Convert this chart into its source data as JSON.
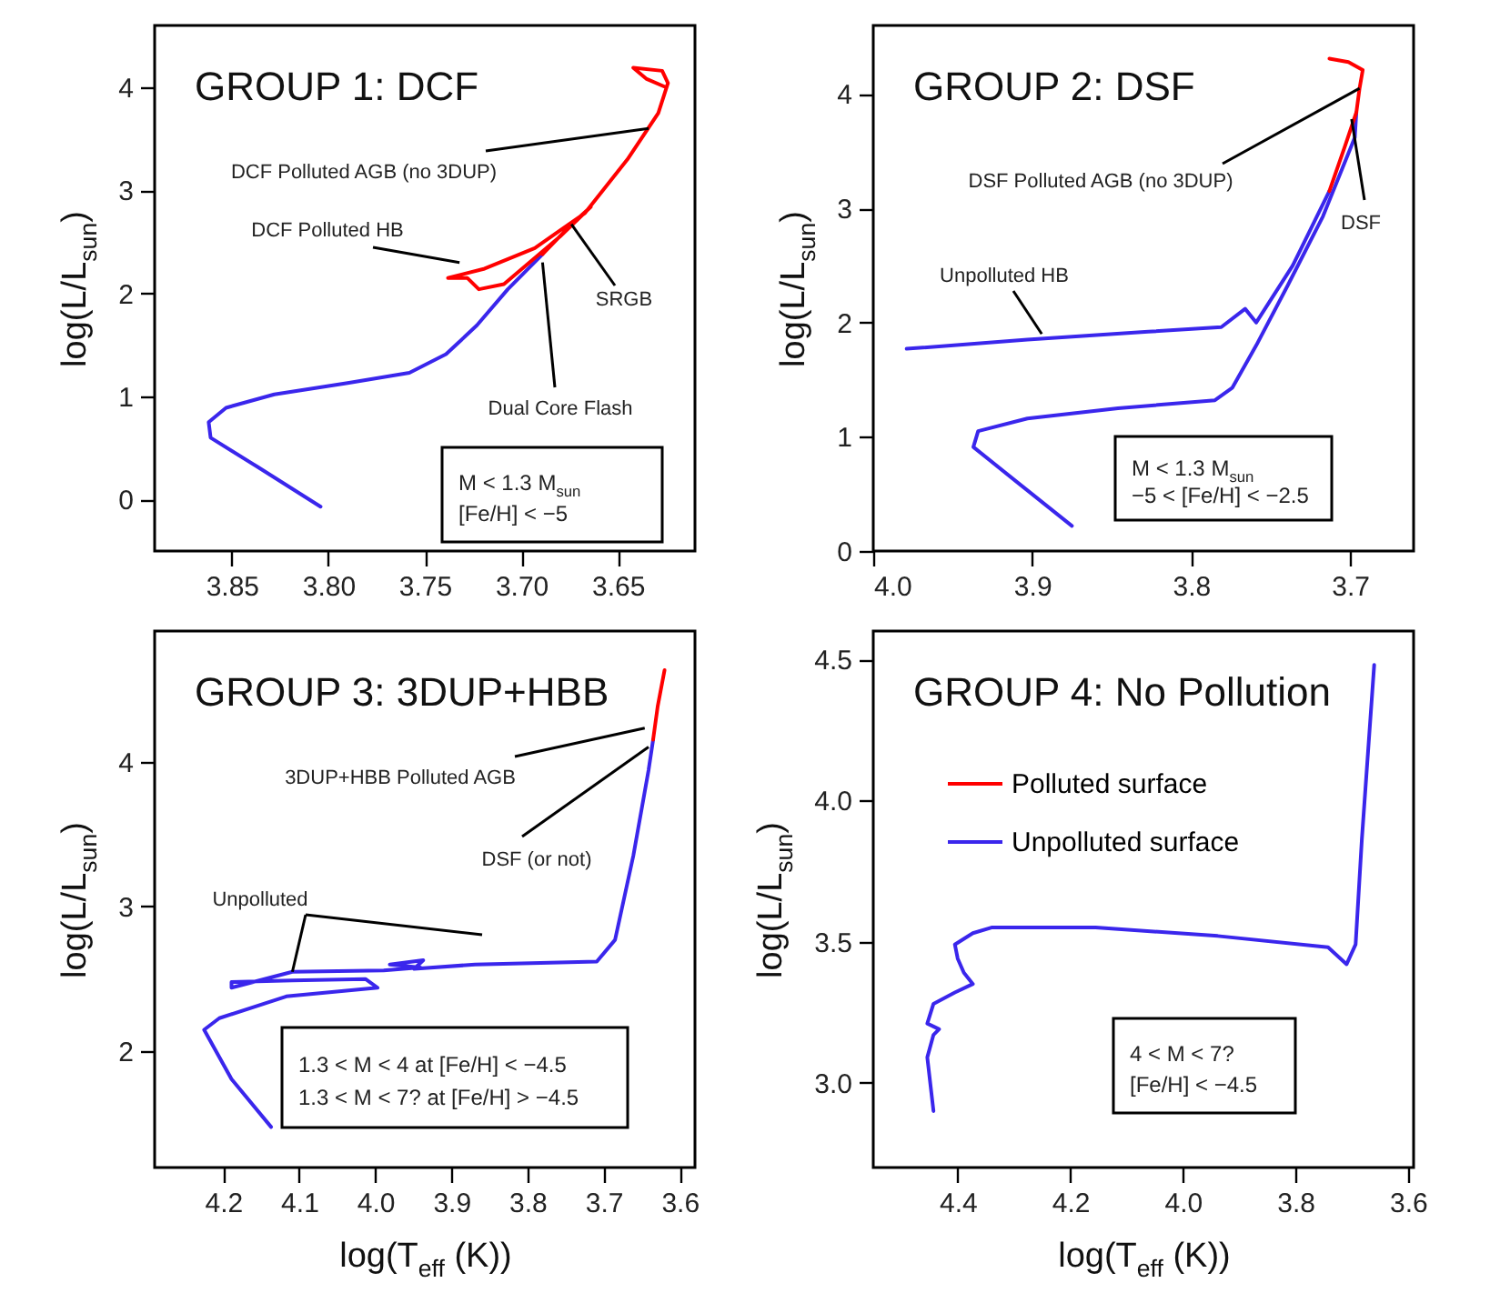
{
  "chart_data": [
    {
      "type": "line",
      "title": "GROUP 1: DCF",
      "ylabel": "log(L/L$_{sun}$)",
      "xlim": [
        3.89,
        3.61
      ],
      "ylim": [
        -0.5,
        4.6
      ],
      "xticks": [
        3.85,
        {
          "value": 3.8,
          "label": "3.80"
        },
        3.75,
        {
          "value": 3.7,
          "label": "3.70"
        },
        3.65
      ],
      "yticks": [
        0,
        1,
        2,
        3,
        4
      ],
      "series": [
        {
          "color": "#3a26ec",
          "x": [
            3.804,
            3.837,
            3.861,
            3.862,
            3.853,
            3.828,
            3.79,
            3.758,
            3.739,
            3.723,
            3.707,
            3.689
          ],
          "values": [
            -0.07,
            0.32,
            0.6,
            0.75,
            0.89,
            1.02,
            1.13,
            1.23,
            1.41,
            1.69,
            2.04,
            2.38
          ]
        },
        {
          "color": "#ff0000",
          "x": [
            3.689,
            3.674,
            3.664,
            3.68,
            3.709,
            3.722,
            3.728,
            3.738,
            3.719,
            3.693,
            3.667,
            3.645,
            3.629,
            3.624,
            3.627,
            3.642,
            3.635,
            3.625
          ],
          "values": [
            2.38,
            2.67,
            2.84,
            2.55,
            2.09,
            2.04,
            2.15,
            2.15,
            2.24,
            2.44,
            2.78,
            3.3,
            3.75,
            4.04,
            4.16,
            4.19,
            4.08,
            4.0
          ]
        }
      ],
      "annotations": [
        {
          "text": "DCF Polluted AGB (no 3DUP)",
          "x": 3.634,
          "y": 3.6
        },
        {
          "text": "DCF Polluted HB",
          "x": 3.732,
          "y": 2.3
        },
        {
          "text": "SRGB",
          "x": 3.674,
          "y": 2.67
        },
        {
          "text": "Dual Core Flash",
          "x": 3.689,
          "y": 2.3
        },
        "M < 1.3 M$_{sun}$",
        "[Fe/H] < −5"
      ]
    },
    {
      "type": "line",
      "title": "GROUP 2: DSF",
      "ylabel": "log(L/L$_{sun}$)",
      "xlim": [
        4.0,
        3.66
      ],
      "ylim": [
        0,
        4.6
      ],
      "xticks": [
        {
          "value": 4,
          "label": "4.0"
        },
        3.9,
        3.8,
        3.7
      ],
      "yticks": [
        0,
        1,
        2,
        3,
        4
      ],
      "series": [
        {
          "color": "#3a26ec",
          "x": [
            3.875,
            3.911,
            3.937,
            3.934,
            3.903,
            3.846,
            3.785,
            3.774,
            3.759,
            3.739,
            3.717,
            3.697,
            3.696
          ],
          "values": [
            0.22,
            0.62,
            0.91,
            1.05,
            1.16,
            1.25,
            1.32,
            1.43,
            1.8,
            2.33,
            2.93,
            3.62,
            3.84
          ]
        },
        {
          "color": "#3a26ec",
          "x": [
            3.979,
            3.903,
            3.827,
            3.781,
            3.766,
            3.759,
            3.736,
            3.713
          ],
          "values": [
            1.77,
            1.85,
            1.92,
            1.96,
            2.12,
            2.0,
            2.5,
            3.15
          ]
        },
        {
          "color": "#ff0000",
          "x": [
            3.713,
            3.703,
            3.696,
            3.694,
            3.692,
            3.701,
            3.713
          ],
          "values": [
            3.15,
            3.55,
            3.84,
            4.05,
            4.21,
            4.28,
            4.31
          ]
        }
      ],
      "annotations": [
        {
          "text": "DSF Polluted AGB (no 3DUP)",
          "x": 3.694,
          "y": 4.05
        },
        {
          "text": "DSF",
          "x": 3.699,
          "y": 3.78
        },
        {
          "text": "Unpolluted HB",
          "x": 3.894,
          "y": 1.9
        },
        "M < 1.3 M$_{sun}$",
        "−5 < [Fe/H] < −2.5"
      ]
    },
    {
      "type": "line",
      "title": "GROUP 3: 3DUP+HBB",
      "xlabel": "log(T$_{eff}$ (K))",
      "ylabel": "log(L/L$_{sun}$)",
      "xlim": [
        4.29,
        3.58
      ],
      "ylim": [
        1.2,
        4.9
      ],
      "xticks": [
        4.2,
        4.1,
        {
          "value": 4,
          "label": "4.0"
        },
        3.9,
        3.8,
        3.7,
        3.6
      ],
      "yticks": [
        2,
        3,
        4
      ],
      "series": [
        {
          "color": "#3a26ec",
          "x": [
            4.137,
            4.189,
            4.225,
            4.205,
            4.117,
            3.997,
            4.013,
            4.109,
            4.189,
            4.189,
            4.109,
            3.989,
            3.941,
            3.981,
            3.937,
            3.949,
            3.869,
            3.709,
            3.685,
            3.661,
            3.641,
            3.635
          ],
          "values": [
            1.48,
            1.81,
            2.15,
            2.23,
            2.38,
            2.44,
            2.5,
            2.49,
            2.48,
            2.44,
            2.55,
            2.56,
            2.58,
            2.6,
            2.63,
            2.57,
            2.6,
            2.62,
            2.77,
            3.35,
            3.94,
            4.15
          ]
        },
        {
          "color": "#ff0000",
          "x": [
            3.635,
            3.629,
            3.62
          ],
          "values": [
            4.15,
            4.38,
            4.63
          ]
        }
      ],
      "annotations": [
        {
          "text": "3DUP+HBB Polluted AGB",
          "x": 3.646,
          "y": 4.23
        },
        {
          "text": "DSF (or not)",
          "x": 3.641,
          "y": 4.1
        },
        {
          "text": "Unpolluted",
          "x": 4.109,
          "y": 2.55
        },
        "1.3 < M < 4 at [Fe/H] < −4.5",
        "1.3 < M < 7? at [Fe/H] > −4.5"
      ]
    },
    {
      "type": "line",
      "title": "GROUP 4: No Pollution",
      "xlabel": "log(T$_{eff}$ (K))",
      "ylabel": "log(L/L$_{sun}$)",
      "xlim": [
        4.55,
        3.59
      ],
      "ylim": [
        2.7,
        4.6
      ],
      "xticks": [
        4.4,
        4.2,
        {
          "value": 4,
          "label": "4.0"
        },
        3.8,
        3.6
      ],
      "yticks": [
        {
          "value": 3,
          "label": "3.0"
        },
        3.5,
        {
          "value": 4,
          "label": "4.0"
        },
        4.5
      ],
      "legend": "top left",
      "series": [
        {
          "name": "Polluted surface",
          "color": "#ff0000"
        },
        {
          "name": "Unpolluted surface",
          "color": "#3a26ec",
          "x": [
            4.443,
            4.454,
            4.443,
            4.433,
            4.454,
            4.443,
            4.405,
            4.373,
            4.389,
            4.4,
            4.405,
            4.373,
            4.34,
            4.155,
            3.938,
            3.742,
            3.709,
            3.693,
            3.682,
            3.66
          ],
          "values": [
            2.9,
            3.09,
            3.17,
            3.19,
            3.21,
            3.28,
            3.32,
            3.35,
            3.39,
            3.44,
            3.49,
            3.53,
            3.55,
            3.55,
            3.52,
            3.48,
            3.42,
            3.49,
            3.86,
            4.48
          ]
        }
      ],
      "annotations": [
        "4 < M < 7?",
        "[Fe/H] < −4.5"
      ]
    }
  ]
}
